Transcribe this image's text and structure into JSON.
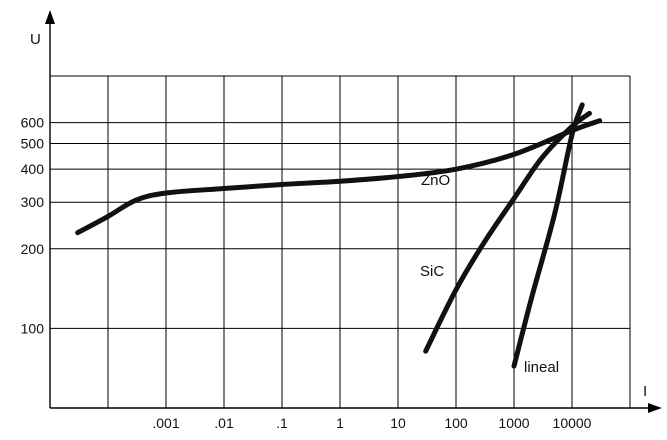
{
  "chart_data": {
    "type": "line",
    "title": "",
    "xlabel": "I",
    "ylabel": "U",
    "x_scale": "log",
    "y_scale": "log",
    "x_tick_labels": [
      ".001",
      ".01",
      ".1",
      "1",
      "10",
      "100",
      "1000",
      "10000"
    ],
    "x_tick_values": [
      0.001,
      0.01,
      0.1,
      1,
      10,
      100,
      1000,
      10000
    ],
    "y_tick_labels": [
      "100",
      "200",
      "300",
      "400",
      "500",
      "600"
    ],
    "y_tick_values": [
      100,
      200,
      300,
      400,
      500,
      600
    ],
    "xlim": [
      1e-05,
      100000
    ],
    "ylim": [
      50,
      900
    ],
    "grid": true,
    "series": [
      {
        "name": "ZnO",
        "points": [
          [
            3e-05,
            230
          ],
          [
            0.0001,
            265
          ],
          [
            0.0003,
            305
          ],
          [
            0.001,
            325
          ],
          [
            0.01,
            338
          ],
          [
            0.1,
            350
          ],
          [
            1,
            360
          ],
          [
            10,
            375
          ],
          [
            100,
            400
          ],
          [
            1000,
            455
          ],
          [
            10000,
            560
          ],
          [
            30000,
            610
          ]
        ]
      },
      {
        "name": "SiC",
        "points": [
          [
            30,
            82
          ],
          [
            100,
            140
          ],
          [
            300,
            210
          ],
          [
            1000,
            310
          ],
          [
            3000,
            440
          ],
          [
            10000,
            580
          ],
          [
            20000,
            650
          ]
        ]
      },
      {
        "name": "lineal",
        "points": [
          [
            1000,
            72
          ],
          [
            2000,
            130
          ],
          [
            5000,
            270
          ],
          [
            10000,
            540
          ],
          [
            15000,
            700
          ]
        ]
      }
    ]
  }
}
